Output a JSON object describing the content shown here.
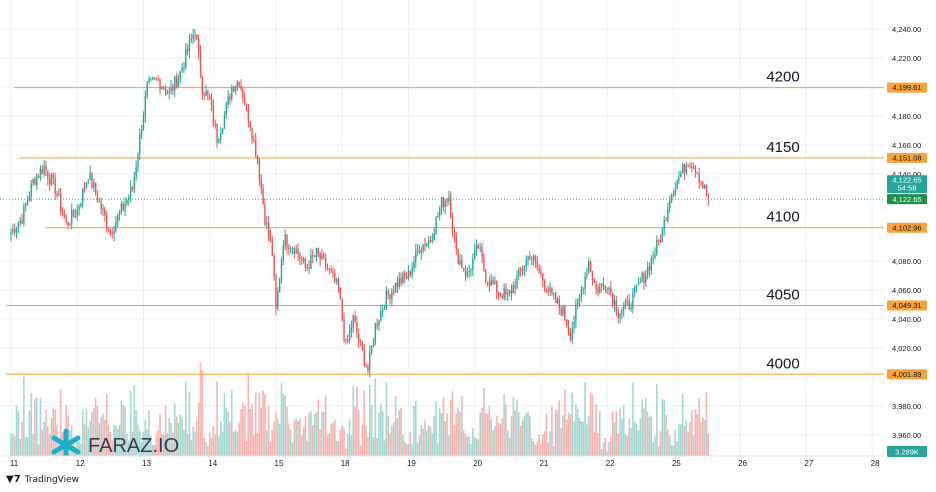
{
  "chart_data": {
    "type": "candlestick",
    "instrument": "XAUUSD",
    "y_axis": {
      "min": 3950,
      "max": 4250,
      "ticks": [
        "4,240.00",
        "4,220.00",
        "4,200.00",
        "4,180.00",
        "4,160.00",
        "4,140.00",
        "4,080.00",
        "4,060.00",
        "4,040.00",
        "4,020.00",
        "3,980.00",
        "3,960.00"
      ],
      "tick_values": [
        4240,
        4220,
        4200,
        4180,
        4160,
        4140,
        4080,
        4060,
        4040,
        4020,
        3980,
        3960
      ]
    },
    "x_axis": {
      "labels": [
        "11",
        "12",
        "13",
        "14",
        "15",
        "18",
        "19",
        "20",
        "21",
        "22",
        "25",
        "26",
        "27",
        "28"
      ],
      "label_positions_in_candles": [
        0,
        36,
        72,
        108,
        144,
        180,
        216,
        252,
        288,
        324,
        360,
        396,
        432,
        468
      ]
    },
    "levels": [
      {
        "label": "4200",
        "price": 4199.61,
        "price_label": "4,199.61"
      },
      {
        "label": "4150",
        "price": 4151.08,
        "price_label": "4,151.08"
      },
      {
        "label": "4100",
        "price": 4102.96,
        "price_label": "4,102.96"
      },
      {
        "label": "4050",
        "price": 4049.31,
        "price_label": "4,049.31"
      },
      {
        "label": "4000",
        "price": 4001.89,
        "price_label": "4,001.89"
      }
    ],
    "current_price": {
      "price": 4122.65,
      "label": "4,122.65",
      "countdown": "54:58",
      "label2": "4,122.65"
    },
    "volume_label": "3.289K",
    "anchors": [
      {
        "i": 0,
        "p": 4100
      },
      {
        "i": 6,
        "p": 4110
      },
      {
        "i": 12,
        "p": 4135
      },
      {
        "i": 18,
        "p": 4145
      },
      {
        "i": 24,
        "p": 4130
      },
      {
        "i": 30,
        "p": 4105
      },
      {
        "i": 36,
        "p": 4115
      },
      {
        "i": 42,
        "p": 4140
      },
      {
        "i": 48,
        "p": 4120
      },
      {
        "i": 54,
        "p": 4100
      },
      {
        "i": 60,
        "p": 4115
      },
      {
        "i": 66,
        "p": 4130
      },
      {
        "i": 70,
        "p": 4165
      },
      {
        "i": 74,
        "p": 4200
      },
      {
        "i": 80,
        "p": 4205
      },
      {
        "i": 86,
        "p": 4195
      },
      {
        "i": 92,
        "p": 4210
      },
      {
        "i": 96,
        "p": 4225
      },
      {
        "i": 100,
        "p": 4240
      },
      {
        "i": 104,
        "p": 4200
      },
      {
        "i": 108,
        "p": 4190
      },
      {
        "i": 112,
        "p": 4165
      },
      {
        "i": 116,
        "p": 4180
      },
      {
        "i": 120,
        "p": 4200
      },
      {
        "i": 124,
        "p": 4205
      },
      {
        "i": 130,
        "p": 4175
      },
      {
        "i": 134,
        "p": 4150
      },
      {
        "i": 138,
        "p": 4110
      },
      {
        "i": 142,
        "p": 4085
      },
      {
        "i": 144,
        "p": 4045
      },
      {
        "i": 148,
        "p": 4095
      },
      {
        "i": 154,
        "p": 4090
      },
      {
        "i": 160,
        "p": 4075
      },
      {
        "i": 166,
        "p": 4085
      },
      {
        "i": 172,
        "p": 4075
      },
      {
        "i": 178,
        "p": 4060
      },
      {
        "i": 182,
        "p": 4020
      },
      {
        "i": 186,
        "p": 4040
      },
      {
        "i": 190,
        "p": 4020
      },
      {
        "i": 194,
        "p": 4005
      },
      {
        "i": 198,
        "p": 4035
      },
      {
        "i": 204,
        "p": 4055
      },
      {
        "i": 210,
        "p": 4065
      },
      {
        "i": 216,
        "p": 4070
      },
      {
        "i": 222,
        "p": 4090
      },
      {
        "i": 228,
        "p": 4095
      },
      {
        "i": 234,
        "p": 4120
      },
      {
        "i": 238,
        "p": 4125
      },
      {
        "i": 242,
        "p": 4085
      },
      {
        "i": 248,
        "p": 4070
      },
      {
        "i": 254,
        "p": 4090
      },
      {
        "i": 258,
        "p": 4070
      },
      {
        "i": 264,
        "p": 4060
      },
      {
        "i": 270,
        "p": 4055
      },
      {
        "i": 276,
        "p": 4070
      },
      {
        "i": 282,
        "p": 4085
      },
      {
        "i": 288,
        "p": 4070
      },
      {
        "i": 294,
        "p": 4055
      },
      {
        "i": 300,
        "p": 4045
      },
      {
        "i": 304,
        "p": 4030
      },
      {
        "i": 308,
        "p": 4050
      },
      {
        "i": 314,
        "p": 4080
      },
      {
        "i": 318,
        "p": 4060
      },
      {
        "i": 324,
        "p": 4065
      },
      {
        "i": 330,
        "p": 4045
      },
      {
        "i": 336,
        "p": 4050
      },
      {
        "i": 342,
        "p": 4065
      },
      {
        "i": 348,
        "p": 4080
      },
      {
        "i": 354,
        "p": 4100
      },
      {
        "i": 358,
        "p": 4125
      },
      {
        "i": 364,
        "p": 4140
      },
      {
        "i": 368,
        "p": 4150
      },
      {
        "i": 372,
        "p": 4145
      },
      {
        "i": 376,
        "p": 4132
      },
      {
        "i": 379,
        "p": 4122.65
      }
    ]
  },
  "watermark": {
    "text": "FARAZ.IO"
  },
  "footer": {
    "brand": "TradingView"
  },
  "colors": {
    "up": "#26a69a",
    "down": "#ef5350",
    "level": "#f7a33a",
    "volume_up": "#a6d8d3",
    "volume_down": "#f5b5b2",
    "grid": "#eeeff2",
    "watermark": "#1bb0c9"
  }
}
